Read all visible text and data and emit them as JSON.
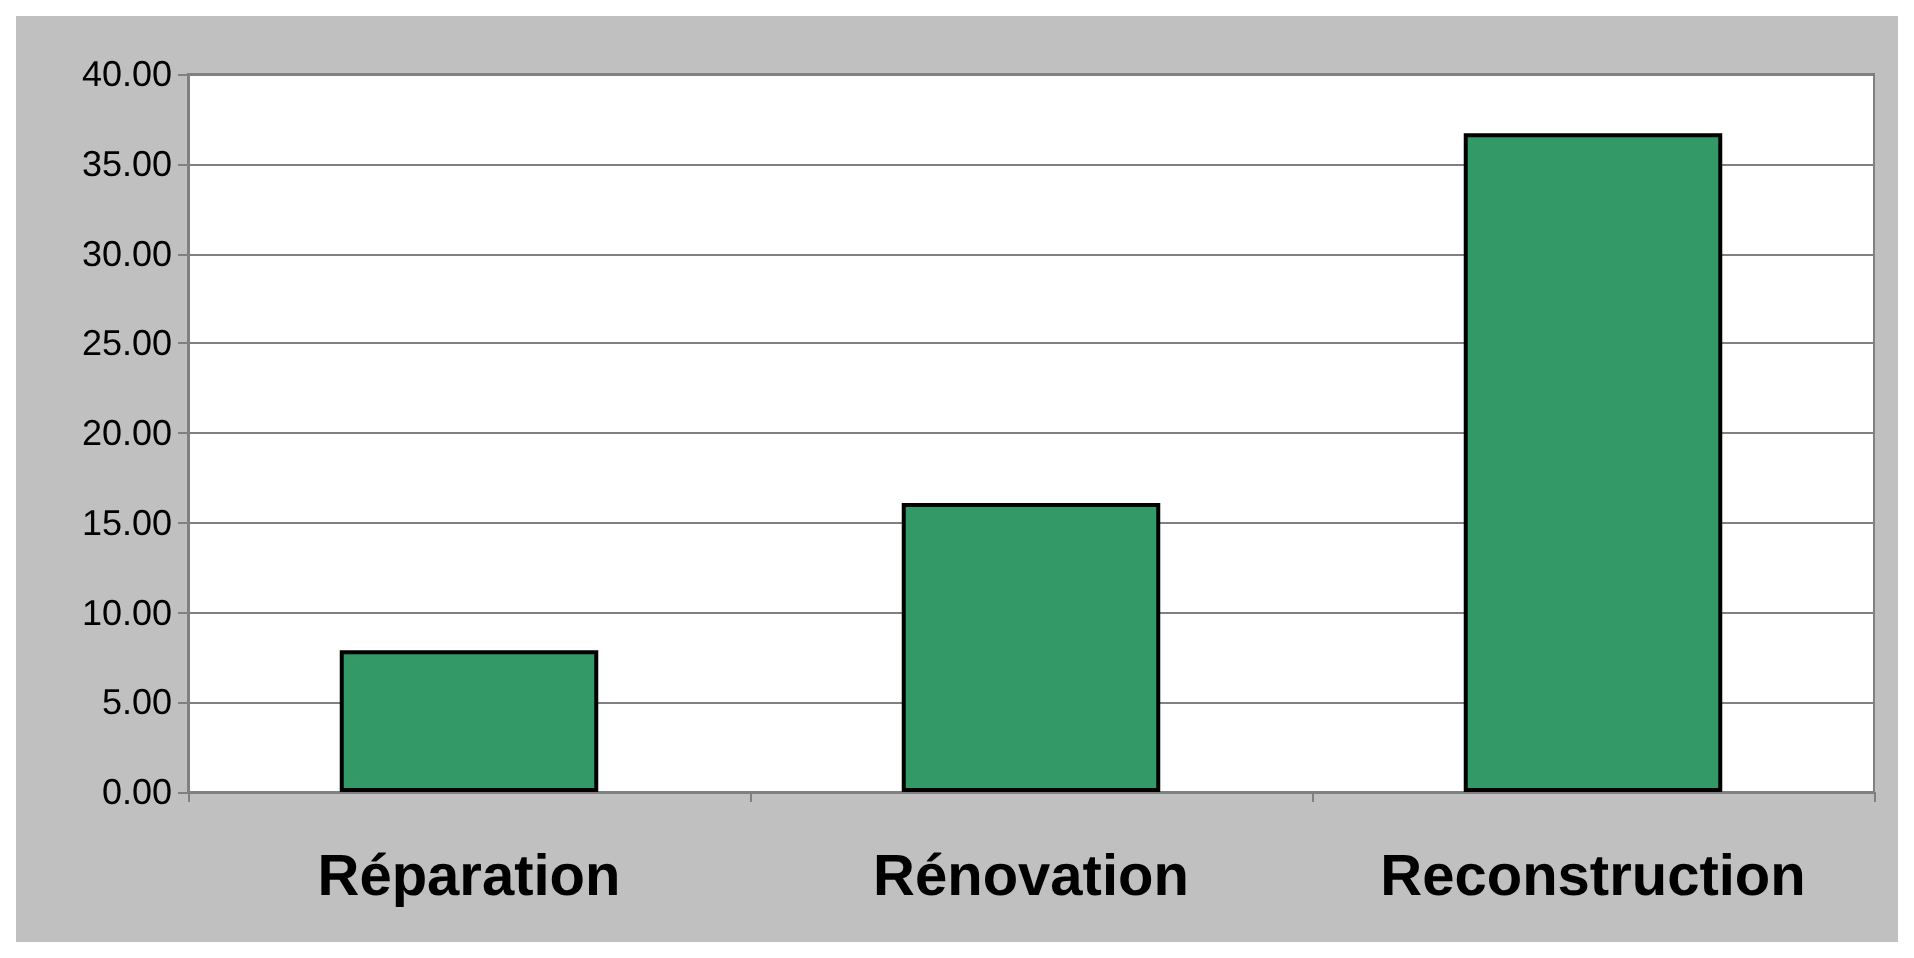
{
  "chart_data": {
    "type": "bar",
    "categories": [
      "Réparation",
      "Rénovation",
      "Reconstruction"
    ],
    "values": [
      7.9,
      16.1,
      36.7
    ],
    "color": "#339966",
    "ylim": [
      0,
      40
    ],
    "yticks": [
      {
        "value": 0,
        "label": "0.00"
      },
      {
        "value": 5,
        "label": "5.00"
      },
      {
        "value": 10,
        "label": "10.00"
      },
      {
        "value": 15,
        "label": "15.00"
      },
      {
        "value": 20,
        "label": "20.00"
      },
      {
        "value": 25,
        "label": "25.00"
      },
      {
        "value": 30,
        "label": "30.00"
      },
      {
        "value": 35,
        "label": "35.00"
      },
      {
        "value": 40,
        "label": "40.00"
      }
    ],
    "grid": "y"
  }
}
